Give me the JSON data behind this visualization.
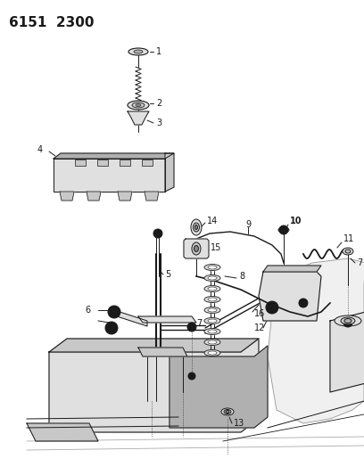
{
  "title": "6151  2300",
  "title_fontsize": 11,
  "title_fontweight": "bold",
  "background_color": "#ffffff",
  "line_color": "#1a1a1a",
  "label_fontsize": 7,
  "bold_label_fontsize": 8,
  "figsize": [
    4.08,
    5.33
  ],
  "dpi": 100,
  "gray_fill": "#c8c8c8",
  "light_gray": "#e0e0e0",
  "mid_gray": "#b0b0b0",
  "dark_gray": "#888888"
}
